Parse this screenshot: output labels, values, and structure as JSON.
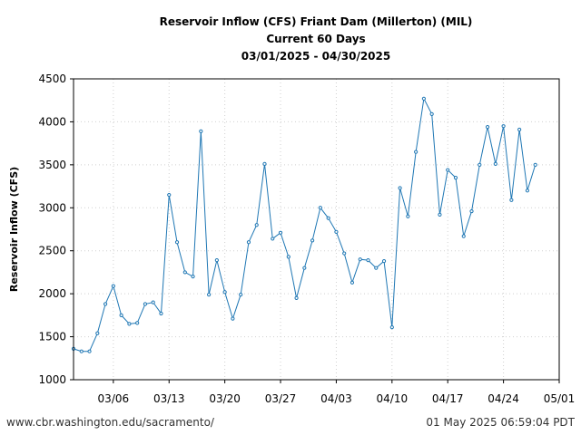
{
  "chart_data": {
    "type": "line",
    "title_lines": [
      "Reservoir Inflow (CFS) Friant Dam (Millerton) (MIL)",
      "Current 60 Days",
      "03/01/2025 - 04/30/2025"
    ],
    "xlabel": "",
    "ylabel": "Reservoir Inflow (CFS)",
    "ylim": [
      1000,
      4500
    ],
    "yticks": [
      1000,
      1500,
      2000,
      2500,
      3000,
      3500,
      4000,
      4500
    ],
    "xlim": [
      0,
      61
    ],
    "xticks": [
      {
        "pos": 5,
        "label": "03/06"
      },
      {
        "pos": 12,
        "label": "03/13"
      },
      {
        "pos": 19,
        "label": "03/20"
      },
      {
        "pos": 26,
        "label": "03/27"
      },
      {
        "pos": 33,
        "label": "04/03"
      },
      {
        "pos": 40,
        "label": "04/10"
      },
      {
        "pos": 47,
        "label": "04/17"
      },
      {
        "pos": 54,
        "label": "04/24"
      },
      {
        "pos": 61,
        "label": "05/01"
      }
    ],
    "grid": true,
    "series": [
      {
        "name": "Reservoir Inflow (CFS)",
        "color": "#1f77b4",
        "x": [
          0,
          1,
          2,
          3,
          4,
          5,
          6,
          7,
          8,
          9,
          10,
          11,
          12,
          13,
          14,
          15,
          16,
          17,
          18,
          19,
          20,
          21,
          22,
          23,
          24,
          25,
          26,
          27,
          28,
          29,
          30,
          31,
          32,
          33,
          34,
          35,
          36,
          37,
          38,
          39,
          40,
          41,
          42,
          43,
          44,
          45,
          46,
          47,
          48,
          49,
          50,
          51,
          52,
          53,
          54,
          55,
          56,
          57,
          58
        ],
        "values": [
          1360,
          1330,
          1330,
          1540,
          1880,
          2090,
          1750,
          1650,
          1660,
          1880,
          1900,
          1770,
          3150,
          2600,
          2250,
          2200,
          3890,
          1990,
          2390,
          2020,
          1710,
          1990,
          2600,
          2800,
          3510,
          2640,
          2710,
          2430,
          1950,
          2300,
          2620,
          3000,
          2880,
          2720,
          2470,
          2130,
          2400,
          2390,
          2300,
          2380,
          1610,
          3230,
          2900,
          3650,
          4270,
          4090,
          2920,
          3440,
          3350,
          2670,
          2960,
          3500,
          3940,
          3510,
          3950,
          3090,
          3910,
          3200,
          3500
        ]
      }
    ]
  },
  "footer": {
    "source_url": "www.cbr.washington.edu/sacramento/",
    "timestamp": "01 May 2025 06:59:04 PDT"
  }
}
